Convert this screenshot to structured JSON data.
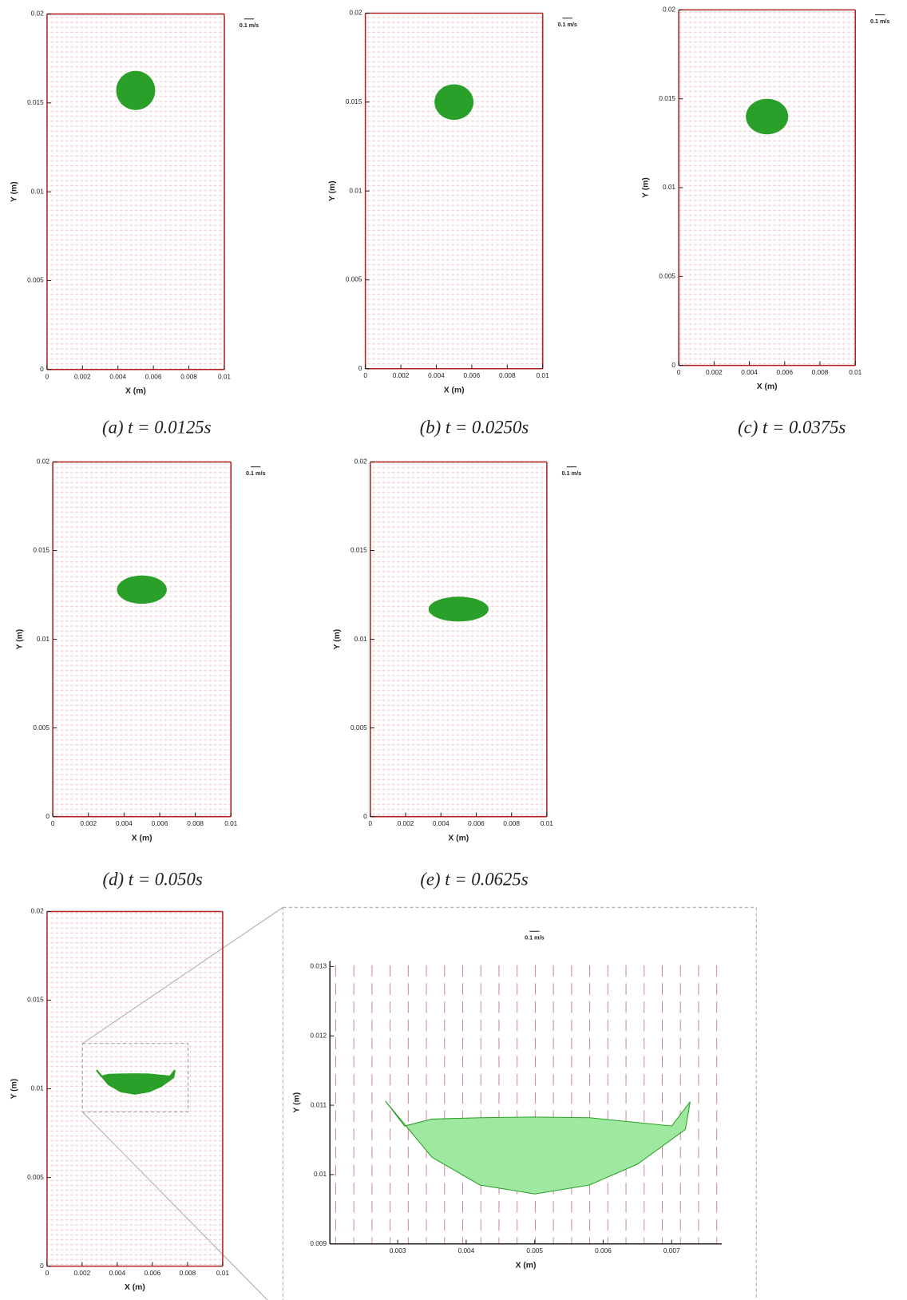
{
  "chart_data": [
    {
      "type": "droplet",
      "caption": "(a) t = 0.0125s",
      "xlabel": "X (m)",
      "ylabel": "Y (m)",
      "reference_label": "0.1 m/s",
      "xlim": [
        0,
        0.01
      ],
      "ylim": [
        0,
        0.02
      ],
      "xticks": [
        0,
        0.002,
        0.004,
        0.006,
        0.008,
        0.01
      ],
      "yticks": [
        0,
        0.005,
        0.01,
        0.015,
        0.02
      ],
      "frame_color": "#b22222",
      "color": "#2aa02a",
      "droplet": {
        "cx": 0.005,
        "cy": 0.0157,
        "rx": 0.0011,
        "ry": 0.0011
      }
    },
    {
      "type": "droplet",
      "caption": "(b) t = 0.0250s",
      "xlabel": "X (m)",
      "ylabel": "Y (m)",
      "reference_label": "0.1 m/s",
      "xlim": [
        0,
        0.01
      ],
      "ylim": [
        0,
        0.02
      ],
      "xticks": [
        0,
        0.002,
        0.004,
        0.006,
        0.008,
        0.01
      ],
      "yticks": [
        0,
        0.005,
        0.01,
        0.015,
        0.02
      ],
      "frame_color": "#b22222",
      "color": "#2aa02a",
      "droplet": {
        "cx": 0.005,
        "cy": 0.015,
        "rx": 0.0011,
        "ry": 0.001
      }
    },
    {
      "type": "droplet",
      "caption": "(c) t = 0.0375s",
      "xlabel": "X (m)",
      "ylabel": "Y (m)",
      "reference_label": "0.1 m/s",
      "xlim": [
        0,
        0.01
      ],
      "ylim": [
        0,
        0.02
      ],
      "xticks": [
        0,
        0.002,
        0.004,
        0.006,
        0.008,
        0.01
      ],
      "yticks": [
        0,
        0.005,
        0.01,
        0.015,
        0.02
      ],
      "frame_color": "#b22222",
      "color": "#2aa02a",
      "droplet": {
        "cx": 0.005,
        "cy": 0.014,
        "rx": 0.0012,
        "ry": 0.001
      }
    },
    {
      "type": "droplet",
      "caption": "(d) t = 0.050s",
      "xlabel": "X (m)",
      "ylabel": "Y (m)",
      "reference_label": "0.1 m/s",
      "xlim": [
        0,
        0.01
      ],
      "ylim": [
        0,
        0.02
      ],
      "xticks": [
        0,
        0.002,
        0.004,
        0.006,
        0.008,
        0.01
      ],
      "yticks": [
        0,
        0.005,
        0.01,
        0.015,
        0.02
      ],
      "frame_color": "#b22222",
      "color": "#2aa02a",
      "droplet": {
        "cx": 0.005,
        "cy": 0.0128,
        "rx": 0.0014,
        "ry": 0.0008
      }
    },
    {
      "type": "droplet",
      "caption": "(e) t = 0.0625s",
      "xlabel": "X (m)",
      "ylabel": "Y (m)",
      "reference_label": "0.1 m/s",
      "xlim": [
        0,
        0.01
      ],
      "ylim": [
        0,
        0.02
      ],
      "xticks": [
        0,
        0.002,
        0.004,
        0.006,
        0.008,
        0.01
      ],
      "yticks": [
        0,
        0.005,
        0.01,
        0.015,
        0.02
      ],
      "frame_color": "#b22222",
      "color": "#2aa02a",
      "droplet": {
        "cx": 0.005,
        "cy": 0.0117,
        "rx": 0.0017,
        "ry": 0.0007
      }
    },
    {
      "type": "crescent",
      "xlabel": "X (m)",
      "ylabel": "Y (m)",
      "xlim": [
        0,
        0.01
      ],
      "ylim": [
        0,
        0.02
      ],
      "xticks": [
        0,
        0.002,
        0.004,
        0.006,
        0.008,
        0.01
      ],
      "yticks": [
        0,
        0.005,
        0.01,
        0.015,
        0.02
      ],
      "frame_color": "#b22222",
      "color": "#2aa02a",
      "outline_x": [
        0.00282,
        0.0035,
        0.0042,
        0.005,
        0.0058,
        0.0065,
        0.0072,
        0.00727,
        0.007,
        0.0065,
        0.0058,
        0.005,
        0.0042,
        0.0035,
        0.0031
      ],
      "outline_y": [
        0.01106,
        0.01025,
        0.00985,
        0.00972,
        0.00985,
        0.01015,
        0.01065,
        0.01105,
        0.0107,
        0.01075,
        0.01082,
        0.01083,
        0.01082,
        0.0108,
        0.0107
      ]
    },
    {
      "type": "crescent",
      "xlabel": "X (m)",
      "ylabel": "Y (m)",
      "reference_label": "0.1 m/s",
      "xlim": [
        0.00201,
        0.00773
      ],
      "ylim": [
        0.009,
        0.01308
      ],
      "xticks": [
        0.003,
        0.004,
        0.005,
        0.006,
        0.007
      ],
      "yticks": [
        0.009,
        0.01,
        0.011,
        0.012,
        0.013
      ],
      "frame_color": "#222222",
      "color": "#9fe89f",
      "outline_x": [
        0.00282,
        0.0035,
        0.0042,
        0.005,
        0.0058,
        0.0065,
        0.0072,
        0.00727,
        0.007,
        0.0065,
        0.0058,
        0.005,
        0.0042,
        0.0035,
        0.0031
      ],
      "outline_y": [
        0.01106,
        0.01025,
        0.00985,
        0.00972,
        0.00985,
        0.01015,
        0.01065,
        0.01105,
        0.0107,
        0.01075,
        0.01082,
        0.01083,
        0.01082,
        0.0108,
        0.0107
      ]
    }
  ]
}
